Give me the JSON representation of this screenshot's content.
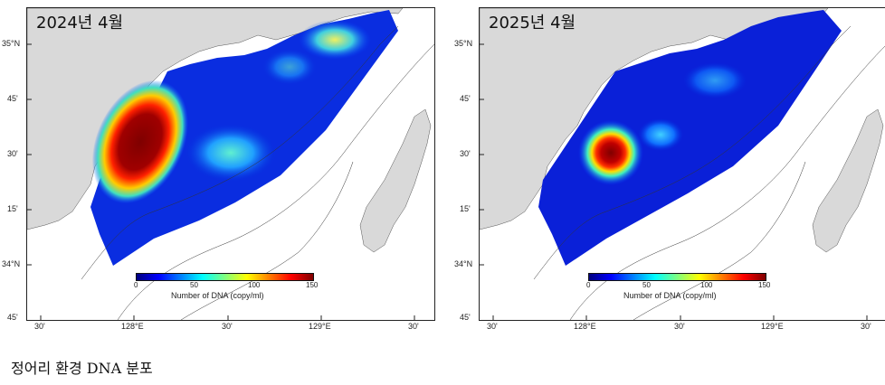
{
  "panels": [
    {
      "title": "2024년 4월",
      "lat_labels": [
        "35°N",
        "45'",
        "30'",
        "15'",
        "34°N",
        "45'"
      ],
      "lon_labels": [
        "30'",
        "128°E",
        "30'",
        "129°E",
        "30'"
      ],
      "colorbar": {
        "ticks": [
          "0",
          "50",
          "100",
          "150"
        ],
        "label": "Number of DNA (copy/ml)"
      }
    },
    {
      "title": "2025년 4월",
      "lat_labels": [
        "35°N",
        "45'",
        "30'",
        "15'",
        "34°N",
        "45'"
      ],
      "lon_labels": [
        "30'",
        "128°E",
        "30'",
        "129°E",
        "30'"
      ],
      "colorbar": {
        "ticks": [
          "0",
          "50",
          "100",
          "150"
        ],
        "label": "Number of DNA (copy/ml)"
      }
    }
  ],
  "caption": "정어리 환경 DNA 분포",
  "colors": {
    "land": "#d9d9d9",
    "ocean_low": "#0000c8",
    "hotspot": "#7f0000"
  }
}
